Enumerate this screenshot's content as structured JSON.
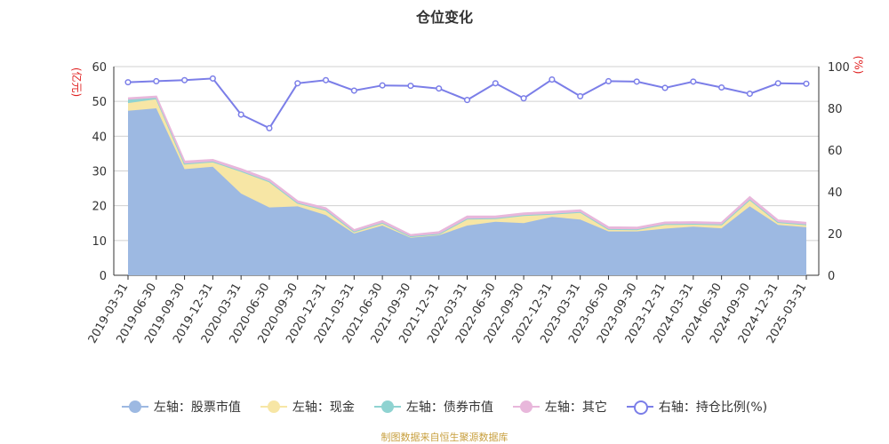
{
  "page": {
    "source": "制图数据来自恒生聚源数据库"
  },
  "chart_data": {
    "type": "area",
    "title": "仓位变化",
    "left_axis_unit": "(亿元)",
    "right_axis_unit": "(%)",
    "left_ylim": [
      0,
      60
    ],
    "left_yticks": [
      0,
      10,
      20,
      30,
      40,
      50,
      60
    ],
    "right_ylim": [
      0,
      100
    ],
    "right_yticks": [
      0,
      20,
      40,
      60,
      80,
      100
    ],
    "grid": true,
    "legend_position": "bottom",
    "categories": [
      "2019-03-31",
      "2019-06-30",
      "2019-09-30",
      "2019-12-31",
      "2020-03-31",
      "2020-06-30",
      "2020-09-30",
      "2020-12-31",
      "2021-03-31",
      "2021-06-30",
      "2021-09-30",
      "2021-12-31",
      "2022-03-31",
      "2022-06-30",
      "2022-09-30",
      "2022-12-31",
      "2023-03-31",
      "2023-06-30",
      "2023-09-30",
      "2023-12-31",
      "2024-03-31",
      "2024-06-30",
      "2024-09-30",
      "2024-12-31",
      "2025-03-31"
    ],
    "series": [
      {
        "name": "左轴：股票市值",
        "axis": "left",
        "kind": "stacked-area",
        "color": "#9db9e2",
        "values": [
          47.3,
          48.0,
          30.5,
          31.2,
          23.5,
          19.5,
          19.8,
          17.3,
          12.0,
          14.3,
          10.8,
          11.5,
          14.3,
          15.4,
          15.0,
          16.8,
          16.0,
          12.6,
          12.6,
          13.4,
          14.0,
          13.5,
          19.8,
          14.5,
          13.8
        ]
      },
      {
        "name": "左轴：现金",
        "axis": "left",
        "kind": "stacked-area",
        "color": "#f7e6a5",
        "values": [
          2.2,
          2.6,
          1.6,
          1.5,
          6.5,
          7.5,
          1.0,
          1.5,
          0.6,
          0.8,
          0.4,
          0.4,
          2.0,
          1.0,
          2.3,
          0.9,
          2.2,
          0.7,
          0.6,
          1.3,
          0.8,
          1.1,
          2.0,
          0.8,
          0.8
        ]
      },
      {
        "name": "左轴：债券市值",
        "axis": "left",
        "kind": "stacked-area",
        "color": "#8fd3d1",
        "values": [
          1.0,
          0.4,
          0,
          0,
          0,
          0,
          0,
          0,
          0,
          0,
          0,
          0,
          0,
          0,
          0,
          0,
          0,
          0,
          0,
          0,
          0,
          0,
          0,
          0,
          0
        ]
      },
      {
        "name": "左轴：其它",
        "axis": "left",
        "kind": "stacked-area",
        "color": "#e8b7db",
        "values": [
          0.4,
          0.4,
          0.6,
          0.5,
          0.5,
          0.5,
          0.5,
          0.5,
          0.4,
          0.5,
          0.4,
          0.5,
          0.6,
          0.5,
          0.5,
          0.5,
          0.5,
          0.5,
          0.5,
          0.5,
          0.5,
          0.5,
          0.7,
          0.5,
          0.5
        ]
      },
      {
        "name": "右轴：持仓比例(%)",
        "axis": "right",
        "kind": "line",
        "color": "#7b7ee8",
        "values": [
          92.5,
          93.0,
          93.5,
          94.3,
          77.0,
          70.5,
          92.0,
          93.5,
          88.5,
          91.0,
          90.8,
          89.5,
          84.0,
          92.0,
          84.8,
          93.8,
          85.8,
          93.0,
          92.8,
          89.8,
          92.8,
          90.0,
          87.0,
          92.0,
          91.8
        ]
      }
    ]
  }
}
